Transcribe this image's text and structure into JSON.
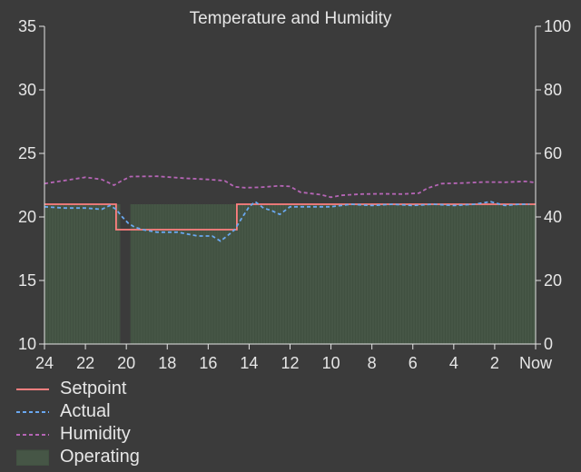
{
  "chart_data": {
    "type": "line",
    "title": "Temperature and Humidity",
    "x_tick_labels": [
      "24",
      "22",
      "20",
      "18",
      "16",
      "14",
      "12",
      "10",
      "8",
      "6",
      "4",
      "2",
      "Now"
    ],
    "x_range_hours_ago": [
      24,
      0
    ],
    "y_left": {
      "range": [
        10,
        35
      ],
      "ticks": [
        10,
        15,
        20,
        25,
        30,
        35
      ]
    },
    "y_right": {
      "range": [
        0,
        100
      ],
      "ticks": [
        0,
        20,
        40,
        60,
        80,
        100
      ]
    },
    "colors": {
      "background": "#3b3b3b",
      "setpoint": "#ff7f7f",
      "actual": "#6aa8f0",
      "humidity": "#b565b5",
      "operating": "#465646",
      "axis": "#e6e6e6"
    },
    "series": [
      {
        "name": "Setpoint",
        "axis": "left",
        "style": "solid",
        "points": [
          [
            24,
            21.0
          ],
          [
            20.5,
            21.0
          ],
          [
            20.5,
            19.0
          ],
          [
            14.6,
            19.0
          ],
          [
            14.6,
            21.0
          ],
          [
            0,
            21.0
          ]
        ]
      },
      {
        "name": "Actual",
        "axis": "left",
        "style": "dashed",
        "points": [
          [
            24,
            20.8
          ],
          [
            23,
            20.7
          ],
          [
            22,
            20.7
          ],
          [
            21.2,
            20.6
          ],
          [
            20.8,
            20.9
          ],
          [
            20.5,
            20.6
          ],
          [
            20.2,
            20.0
          ],
          [
            19.9,
            19.5
          ],
          [
            19.6,
            19.2
          ],
          [
            19.2,
            19.0
          ],
          [
            18.5,
            18.8
          ],
          [
            17.5,
            18.8
          ],
          [
            16.5,
            18.5
          ],
          [
            15.8,
            18.5
          ],
          [
            15.4,
            18.1
          ],
          [
            15.0,
            18.6
          ],
          [
            14.7,
            19.0
          ],
          [
            14.4,
            19.8
          ],
          [
            14.0,
            20.8
          ],
          [
            13.7,
            21.2
          ],
          [
            13.3,
            20.7
          ],
          [
            12.9,
            20.5
          ],
          [
            12.5,
            20.2
          ],
          [
            12.0,
            20.8
          ],
          [
            11,
            20.8
          ],
          [
            10,
            20.8
          ],
          [
            9,
            21.0
          ],
          [
            8,
            20.9
          ],
          [
            7,
            21.0
          ],
          [
            6,
            20.9
          ],
          [
            5,
            21.0
          ],
          [
            4,
            20.9
          ],
          [
            3,
            21.0
          ],
          [
            2.2,
            21.2
          ],
          [
            1.5,
            20.9
          ],
          [
            0.8,
            21.0
          ],
          [
            0.3,
            21.0
          ]
        ]
      },
      {
        "name": "Humidity",
        "axis": "right",
        "style": "dashed",
        "points": [
          [
            24,
            50.5
          ],
          [
            23.5,
            51.0
          ],
          [
            23,
            51.5
          ],
          [
            22,
            52.5
          ],
          [
            21.2,
            51.8
          ],
          [
            20.6,
            50.0
          ],
          [
            20.2,
            51.5
          ],
          [
            19.8,
            52.7
          ],
          [
            18.5,
            52.8
          ],
          [
            17.2,
            52.2
          ],
          [
            16,
            51.8
          ],
          [
            15.2,
            51.4
          ],
          [
            14.7,
            49.5
          ],
          [
            14.2,
            49.2
          ],
          [
            13.5,
            49.3
          ],
          [
            12.5,
            49.8
          ],
          [
            12.0,
            49.6
          ],
          [
            11.5,
            47.8
          ],
          [
            10.5,
            47.0
          ],
          [
            10.0,
            46.2
          ],
          [
            9.5,
            46.8
          ],
          [
            8.5,
            47.2
          ],
          [
            7.5,
            47.3
          ],
          [
            6.5,
            47.2
          ],
          [
            5.7,
            47.5
          ],
          [
            5.3,
            49.0
          ],
          [
            4.6,
            50.5
          ],
          [
            3.5,
            50.7
          ],
          [
            2.5,
            51.0
          ],
          [
            1.5,
            50.9
          ],
          [
            0.5,
            51.2
          ],
          [
            0,
            50.8
          ]
        ]
      }
    ],
    "operating": {
      "name": "Operating",
      "axis": "left",
      "on_value": 21,
      "intervals": [
        [
          24,
          20.3
        ],
        [
          19.8,
          14.6
        ],
        [
          14.6,
          0
        ]
      ]
    }
  },
  "legend": [
    {
      "label": "Setpoint",
      "kind": "line-solid",
      "color_key": "setpoint"
    },
    {
      "label": "Actual",
      "kind": "line-dashed",
      "color_key": "actual"
    },
    {
      "label": "Humidity",
      "kind": "line-dashed",
      "color_key": "humidity"
    },
    {
      "label": "Operating",
      "kind": "box",
      "color_key": "operating"
    }
  ]
}
